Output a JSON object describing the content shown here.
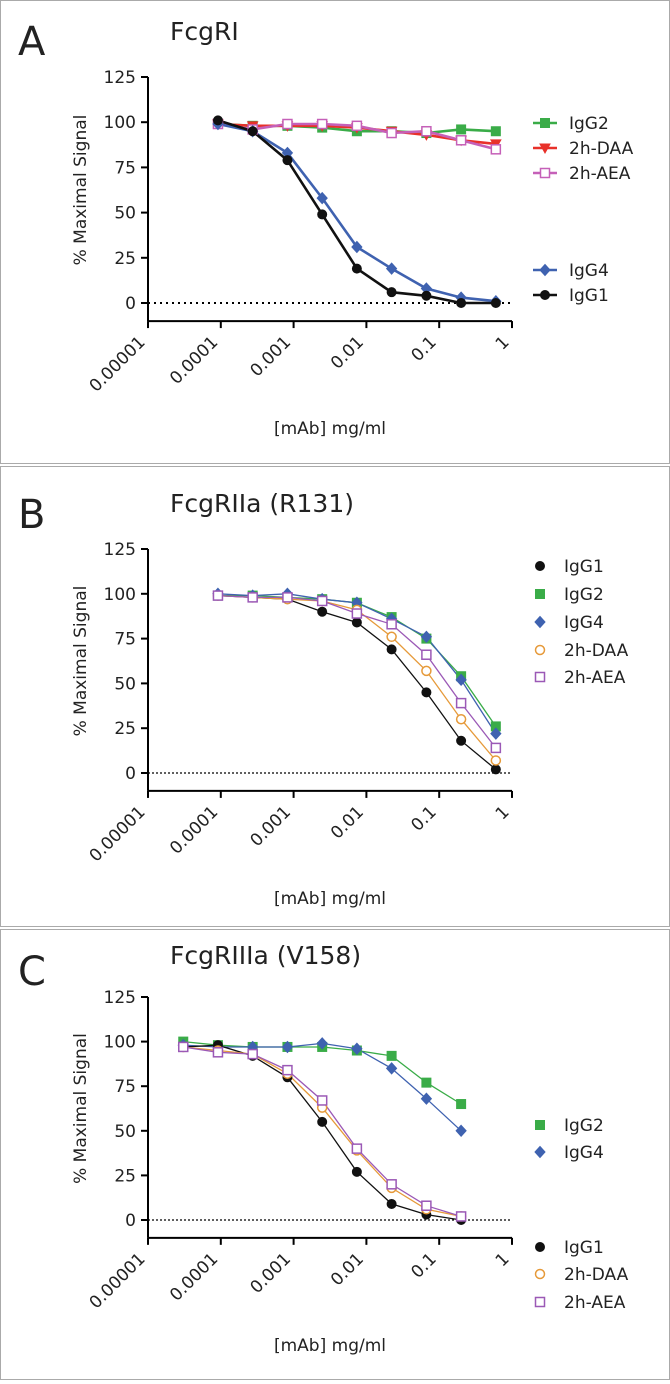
{
  "chart_data": [
    {
      "type": "scatter",
      "panel": "A",
      "title": "FcgRI",
      "xlabel": "[mAb] mg/ml",
      "ylabel": "% Maximal  Signal",
      "xscale": "log",
      "xlim": [
        1e-05,
        1
      ],
      "xticks": [
        1e-05,
        0.0001,
        0.001,
        0.01,
        0.1,
        1
      ],
      "ylim": [
        -10,
        125
      ],
      "yticks": [
        0,
        25,
        50,
        75,
        100,
        125
      ],
      "zero_line": true,
      "x": [
        9.14e-05,
        0.000274,
        0.000823,
        0.00247,
        0.0074,
        0.0222,
        0.0667,
        0.2,
        0.6
      ],
      "series": [
        {
          "name": "IgG2",
          "color": "#3aac48",
          "marker": "square",
          "values": [
            99,
            98,
            98,
            97,
            95,
            95,
            94,
            96,
            95
          ]
        },
        {
          "name": "2h-DAA",
          "color": "#e8312a",
          "marker": "triangle-down",
          "values": [
            99,
            98,
            98,
            98,
            97,
            95,
            93,
            90,
            88
          ]
        },
        {
          "name": "2h-AEA",
          "color": "#c560b8",
          "marker": "square-open",
          "values": [
            99,
            96,
            99,
            99,
            98,
            94,
            95,
            90,
            85
          ]
        },
        {
          "name": "IgG4",
          "color": "#3f62b0",
          "marker": "diamond",
          "values": [
            99,
            95,
            83,
            58,
            31,
            19,
            8,
            3,
            1
          ]
        },
        {
          "name": "IgG1",
          "color": "#111111",
          "marker": "circle",
          "values": [
            101,
            95,
            79,
            49,
            19,
            6,
            4,
            0,
            0
          ]
        }
      ]
    },
    {
      "type": "scatter",
      "panel": "B",
      "title": "FcgRIIa (R131)",
      "xlabel": "[mAb] mg/ml",
      "ylabel": "% Maximal  Signal",
      "xscale": "log",
      "xlim": [
        1e-05,
        1
      ],
      "xticks": [
        1e-05,
        0.0001,
        0.001,
        0.01,
        0.1,
        1
      ],
      "ylim": [
        -10,
        125
      ],
      "yticks": [
        0,
        25,
        50,
        75,
        100,
        125
      ],
      "zero_line": true,
      "x": [
        9.14e-05,
        0.000274,
        0.000823,
        0.00247,
        0.0074,
        0.0222,
        0.0667,
        0.2,
        0.6
      ],
      "series": [
        {
          "name": "IgG1",
          "color": "#111111",
          "marker": "circle",
          "values": [
            99,
            98,
            97,
            90,
            84,
            69,
            45,
            18,
            2
          ]
        },
        {
          "name": "IgG2",
          "color": "#3aac48",
          "marker": "square",
          "values": [
            99,
            99,
            98,
            97,
            95,
            87,
            75,
            54,
            26
          ]
        },
        {
          "name": "IgG4",
          "color": "#3f62b0",
          "marker": "diamond",
          "values": [
            100,
            99,
            100,
            97,
            95,
            86,
            76,
            52,
            22
          ]
        },
        {
          "name": "2h-DAA",
          "color": "#e69a3a",
          "marker": "circle-open",
          "values": [
            99,
            98,
            97,
            96,
            91,
            76,
            57,
            30,
            7
          ]
        },
        {
          "name": "2h-AEA",
          "color": "#9b59b6",
          "marker": "square-open",
          "values": [
            99,
            98,
            98,
            96,
            89,
            83,
            66,
            39,
            14
          ]
        }
      ]
    },
    {
      "type": "scatter",
      "panel": "C",
      "title": "FcgRIIIa (V158)",
      "xlabel": "[mAb] mg/ml",
      "ylabel": "% Maximal  Signal",
      "xscale": "log",
      "xlim": [
        1e-05,
        1
      ],
      "xticks": [
        1e-05,
        0.0001,
        0.001,
        0.01,
        0.1,
        1
      ],
      "ylim": [
        -10,
        125
      ],
      "yticks": [
        0,
        25,
        50,
        75,
        100,
        125
      ],
      "zero_line": true,
      "x": [
        3.05e-05,
        9.14e-05,
        0.000274,
        0.000823,
        0.00247,
        0.0074,
        0.0222,
        0.0667,
        0.2
      ],
      "series": [
        {
          "name": "IgG2",
          "color": "#3aac48",
          "marker": "square",
          "values": [
            100,
            98,
            97,
            97,
            97,
            95,
            92,
            77,
            65
          ]
        },
        {
          "name": "IgG4",
          "color": "#3f62b0",
          "marker": "diamond",
          "values": [
            98,
            97,
            97,
            97,
            99,
            96,
            85,
            68,
            50
          ]
        },
        {
          "name": "IgG1",
          "color": "#111111",
          "marker": "circle",
          "values": [
            97,
            98,
            92,
            80,
            55,
            27,
            9,
            3,
            0
          ]
        },
        {
          "name": "2h-DAA",
          "color": "#e69a3a",
          "marker": "circle-open",
          "values": [
            97,
            95,
            93,
            82,
            63,
            39,
            18,
            6,
            2
          ]
        },
        {
          "name": "2h-AEA",
          "color": "#9b59b6",
          "marker": "square-open",
          "values": [
            97,
            94,
            93,
            84,
            67,
            40,
            20,
            8,
            2
          ]
        }
      ]
    }
  ]
}
